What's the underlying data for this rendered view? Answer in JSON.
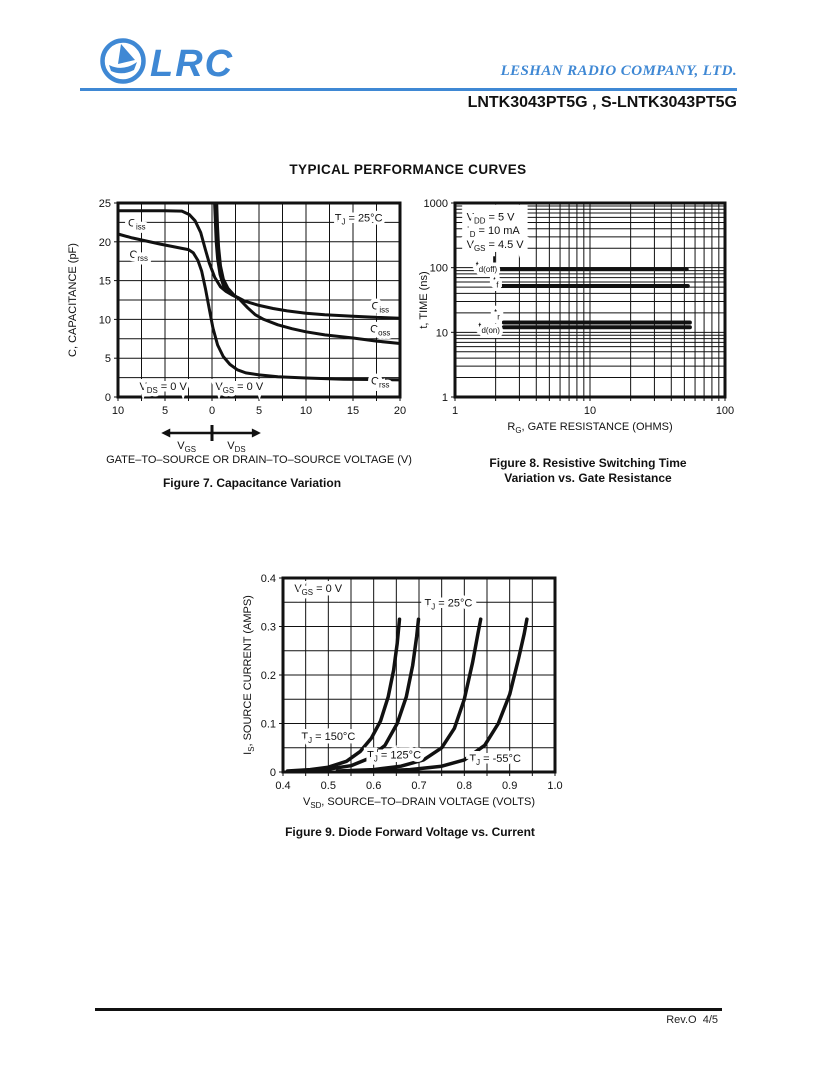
{
  "header": {
    "logo_text": "LRC",
    "company": "LESHAN RADIO COMPANY, LTD.",
    "part_numbers": "LNTK3043PT5G , S-LNTK3043PT5G",
    "brand_blue": "#3f88d4"
  },
  "title": "TYPICAL PERFORMANCE CURVES",
  "footer": {
    "revision": "Rev.O  4/5"
  },
  "chart_data": [
    {
      "id": "fig7",
      "type": "line",
      "caption": "Figure 7. Capacitance Variation",
      "xlabel": "GATE–TO–SOURCE OR DRAIN–TO–SOURCE VOLTAGE (V)",
      "ylabel": "C, CAPACITANCE (pF)",
      "xscale": "linear",
      "yscale": "linear",
      "xlim": [
        -10,
        20
      ],
      "ylim": [
        0,
        25
      ],
      "x_grid": 2.5,
      "y_grid": 2.5,
      "x_ticks": [
        [
          -10,
          "10"
        ],
        [
          -5,
          "5"
        ],
        [
          0,
          "0"
        ],
        [
          5,
          "5"
        ],
        [
          10,
          "10"
        ],
        [
          15,
          "15"
        ],
        [
          20,
          "20"
        ]
      ],
      "y_ticks": [
        [
          0,
          "0"
        ],
        [
          5,
          "5"
        ],
        [
          10,
          "10"
        ],
        [
          15,
          "15"
        ],
        [
          20,
          "20"
        ],
        [
          25,
          "25"
        ]
      ],
      "series": [
        {
          "name": "Ciss",
          "width": 3,
          "points": [
            [
              -10,
              24
            ],
            [
              -5,
              24
            ],
            [
              -3.2,
              23.95
            ],
            [
              -2.4,
              23.5
            ],
            [
              -1.8,
              22.7
            ],
            [
              -1.2,
              21.2
            ],
            [
              -0.7,
              19
            ],
            [
              -0.3,
              17.3
            ],
            [
              0.3,
              15.4
            ],
            [
              0.9,
              14.2
            ],
            [
              1.5,
              13.6
            ],
            [
              2.2,
              13.1
            ],
            [
              2.8,
              12.8
            ],
            [
              3.5,
              12.35
            ],
            [
              5,
              11.8
            ],
            [
              6.5,
              11.4
            ],
            [
              8,
              11.1
            ],
            [
              10,
              10.8
            ],
            [
              12,
              10.6
            ],
            [
              15,
              10.4
            ],
            [
              17,
              10.3
            ],
            [
              20,
              10.15
            ]
          ]
        },
        {
          "name": "Ciss (VDS branch)",
          "width": 3,
          "points": [
            [
              0.28,
              25
            ],
            [
              0.36,
              22.5
            ],
            [
              0.45,
              20
            ],
            [
              0.6,
              17.8
            ],
            [
              0.85,
              15.8
            ],
            [
              1.2,
              14.4
            ],
            [
              1.7,
              13.6
            ],
            [
              2.3,
              13.05
            ],
            [
              2.8,
              12.8
            ]
          ]
        },
        {
          "name": "Coss",
          "width": 3,
          "points": [
            [
              0.5,
              25
            ],
            [
              0.58,
              22
            ],
            [
              0.7,
              19.3
            ],
            [
              0.9,
              16.9
            ],
            [
              1.2,
              15.2
            ],
            [
              1.7,
              14
            ],
            [
              2.3,
              13.2
            ],
            [
              3,
              12.5
            ],
            [
              3.8,
              11.5
            ],
            [
              4.6,
              10.6
            ],
            [
              5.5,
              10
            ],
            [
              7,
              9.3
            ],
            [
              8.5,
              8.8
            ],
            [
              10,
              8.4
            ],
            [
              12,
              8
            ],
            [
              15,
              7.6
            ],
            [
              17.5,
              7.2
            ],
            [
              20,
              6.9
            ]
          ]
        },
        {
          "name": "Crss",
          "width": 3,
          "points": [
            [
              -10,
              21
            ],
            [
              -8.5,
              20.5
            ],
            [
              -7,
              20.1
            ],
            [
              -5.5,
              19.7
            ],
            [
              -4.2,
              19.4
            ],
            [
              -3.2,
              19.15
            ],
            [
              -2.5,
              19
            ],
            [
              -2,
              18.6
            ],
            [
              -1.5,
              17.6
            ],
            [
              -1.1,
              16.2
            ],
            [
              -0.7,
              14
            ],
            [
              -0.3,
              11.4
            ],
            [
              0.1,
              8.9
            ],
            [
              0.6,
              6.7
            ],
            [
              1.2,
              5.2
            ],
            [
              1.9,
              4.2
            ],
            [
              2.7,
              3.5
            ],
            [
              3.6,
              3.1
            ],
            [
              5,
              2.85
            ],
            [
              7,
              2.6
            ],
            [
              10,
              2.45
            ],
            [
              14,
              2.3
            ],
            [
              17,
              2.25
            ],
            [
              20,
              2.2
            ]
          ]
        }
      ],
      "annotations": [
        {
          "x": -8,
          "y": 22.0,
          "text": "C~iss~",
          "anchor": "middle",
          "halo": true
        },
        {
          "x": -7.8,
          "y": 17.9,
          "text": "C~rss~",
          "anchor": "middle",
          "halo": true
        },
        {
          "x": 15.6,
          "y": 22.6,
          "text": "T~J~ = 25°C",
          "anchor": "middle",
          "halo": true
        },
        {
          "x": 17.9,
          "y": 11.3,
          "text": "C~iss~",
          "anchor": "middle",
          "halo": true
        },
        {
          "x": 17.9,
          "y": 8.3,
          "text": "C~oss~",
          "anchor": "middle",
          "halo": true
        },
        {
          "x": 17.9,
          "y": 1.6,
          "text": "C~rss~",
          "anchor": "middle",
          "halo": true
        },
        {
          "x": -5.2,
          "y": 0.9,
          "text": "V~DS~ = 0 V",
          "anchor": "middle",
          "halo": true
        },
        {
          "x": 2.9,
          "y": 0.9,
          "text": "V~GS~ = 0 V",
          "anchor": "middle",
          "halo": true
        }
      ],
      "gate_arrow": {
        "x1": -5.4,
        "x2": 5.2,
        "xc": 0,
        "left_label": "V~GS~",
        "right_label": "V~DS~"
      }
    },
    {
      "id": "fig8",
      "type": "line",
      "caption_lines": [
        "Figure 8. Resistive Switching Time",
        "Variation vs. Gate Resistance"
      ],
      "xlabel": "R~G~, GATE RESISTANCE (OHMS)",
      "ylabel": "t, TIME (ns)",
      "xscale": "log",
      "yscale": "log",
      "xlim": [
        1,
        100
      ],
      "ylim": [
        1,
        1000
      ],
      "x_ticks": [
        [
          1,
          "1"
        ],
        [
          10,
          "10"
        ],
        [
          100,
          "100"
        ]
      ],
      "y_ticks": [
        [
          1,
          "1"
        ],
        [
          10,
          "10"
        ],
        [
          100,
          "100"
        ],
        [
          1000,
          "1000"
        ]
      ],
      "clear_rects": [
        {
          "x1": 1.13,
          "x2": 3.45,
          "y1": 175,
          "y2": 940
        }
      ],
      "series": [
        {
          "name": "td(off)",
          "width": 4,
          "points": [
            [
              2.15,
              95
            ],
            [
              52,
              95
            ]
          ]
        },
        {
          "name": "tf",
          "width": 4,
          "points": [
            [
              2.2,
              52
            ],
            [
              53,
              52
            ]
          ]
        },
        {
          "name": "tr",
          "width": 4,
          "points": [
            [
              2.3,
              14.2
            ],
            [
              55,
              14.2
            ]
          ]
        },
        {
          "name": "td(on)",
          "width": 4,
          "points": [
            [
              2.3,
              12.0
            ],
            [
              55,
              12.0
            ]
          ]
        }
      ],
      "annotations": [
        {
          "x": 1.22,
          "y": 540,
          "text": "V~DD~ = 5 V",
          "anchor": "start",
          "halo": true
        },
        {
          "x": 1.22,
          "y": 330,
          "text": "I~D~ = 10 mA",
          "anchor": "start",
          "halo": true
        },
        {
          "x": 1.22,
          "y": 200,
          "text": "V~GS~ = 4.5 V",
          "anchor": "start",
          "halo": true
        },
        {
          "type": "line",
          "x1": 1.95,
          "y1": 118,
          "x2": 1.95,
          "y2": 150
        },
        {
          "x": 2.05,
          "y": 96,
          "text": "t~d(off)~",
          "anchor": "end",
          "halo": true
        },
        {
          "x": 2.1,
          "y": 55,
          "text": "t~f~",
          "anchor": "end",
          "halo": true
        },
        {
          "x": 2.15,
          "y": 17.5,
          "text": "t~r~",
          "anchor": "end",
          "halo": true
        },
        {
          "x": 2.15,
          "y": 10.8,
          "text": "t~d(on)~",
          "anchor": "end",
          "halo": true
        }
      ]
    },
    {
      "id": "fig9",
      "type": "line",
      "caption": "Figure 9. Diode Forward Voltage vs. Current",
      "xlabel": "V~SD~, SOURCE–TO–DRAIN VOLTAGE (VOLTS)",
      "ylabel": "I~S~, SOURCE CURRENT (AMPS)",
      "xscale": "linear",
      "yscale": "linear",
      "xlim": [
        0.4,
        1.0
      ],
      "ylim": [
        0,
        0.4
      ],
      "x_grid": 0.05,
      "y_grid": 0.05,
      "x_ticks": [
        [
          0.4,
          "0.4"
        ],
        [
          0.5,
          "0.5"
        ],
        [
          0.6,
          "0.6"
        ],
        [
          0.7,
          "0.7"
        ],
        [
          0.8,
          "0.8"
        ],
        [
          0.9,
          "0.9"
        ],
        [
          1.0,
          "1.0"
        ]
      ],
      "y_ticks": [
        [
          0,
          "0"
        ],
        [
          0.1,
          "0.1"
        ],
        [
          0.2,
          "0.2"
        ],
        [
          0.3,
          "0.3"
        ],
        [
          0.4,
          "0.4"
        ]
      ],
      "series": [
        {
          "name": "TJ = 150C",
          "width": 3.5,
          "points": [
            [
              0.41,
              0.002
            ],
            [
              0.46,
              0.005
            ],
            [
              0.5,
              0.01
            ],
            [
              0.54,
              0.022
            ],
            [
              0.57,
              0.042
            ],
            [
              0.595,
              0.07
            ],
            [
              0.615,
              0.105
            ],
            [
              0.632,
              0.155
            ],
            [
              0.644,
              0.21
            ],
            [
              0.652,
              0.265
            ],
            [
              0.657,
              0.315
            ]
          ]
        },
        {
          "name": "TJ = 125C",
          "width": 3.5,
          "points": [
            [
              0.43,
              0.002
            ],
            [
              0.5,
              0.006
            ],
            [
              0.55,
              0.013
            ],
            [
              0.59,
              0.028
            ],
            [
              0.625,
              0.055
            ],
            [
              0.652,
              0.1
            ],
            [
              0.672,
              0.155
            ],
            [
              0.686,
              0.22
            ],
            [
              0.695,
              0.28
            ],
            [
              0.699,
              0.315
            ]
          ]
        },
        {
          "name": "TJ = 25C",
          "width": 3.5,
          "points": [
            [
              0.52,
              0.002
            ],
            [
              0.6,
              0.005
            ],
            [
              0.66,
              0.012
            ],
            [
              0.71,
              0.025
            ],
            [
              0.75,
              0.05
            ],
            [
              0.778,
              0.09
            ],
            [
              0.8,
              0.15
            ],
            [
              0.818,
              0.225
            ],
            [
              0.83,
              0.285
            ],
            [
              0.836,
              0.315
            ]
          ]
        },
        {
          "name": "TJ = -55C",
          "width": 3.5,
          "points": [
            [
              0.6,
              0.002
            ],
            [
              0.68,
              0.005
            ],
            [
              0.75,
              0.012
            ],
            [
              0.8,
              0.025
            ],
            [
              0.845,
              0.055
            ],
            [
              0.875,
              0.1
            ],
            [
              0.9,
              0.16
            ],
            [
              0.92,
              0.235
            ],
            [
              0.932,
              0.285
            ],
            [
              0.938,
              0.315
            ]
          ]
        }
      ],
      "annotations": [
        {
          "x": 0.425,
          "y": 0.371,
          "text": "V~GS~ = 0 V",
          "anchor": "start",
          "halo": true
        },
        {
          "x": 0.765,
          "y": 0.341,
          "text": "T~J~ = 25°C",
          "anchor": "middle",
          "halo": true
        },
        {
          "x": 0.5,
          "y": 0.066,
          "text": "T~J~ = 150°C",
          "anchor": "middle",
          "halo": true
        },
        {
          "x": 0.645,
          "y": 0.028,
          "text": "T~J~ = 125°C",
          "anchor": "middle",
          "halo": true
        },
        {
          "x": 0.868,
          "y": 0.021,
          "text": "T~J~ = -55°C",
          "anchor": "middle",
          "halo": true
        }
      ]
    }
  ]
}
